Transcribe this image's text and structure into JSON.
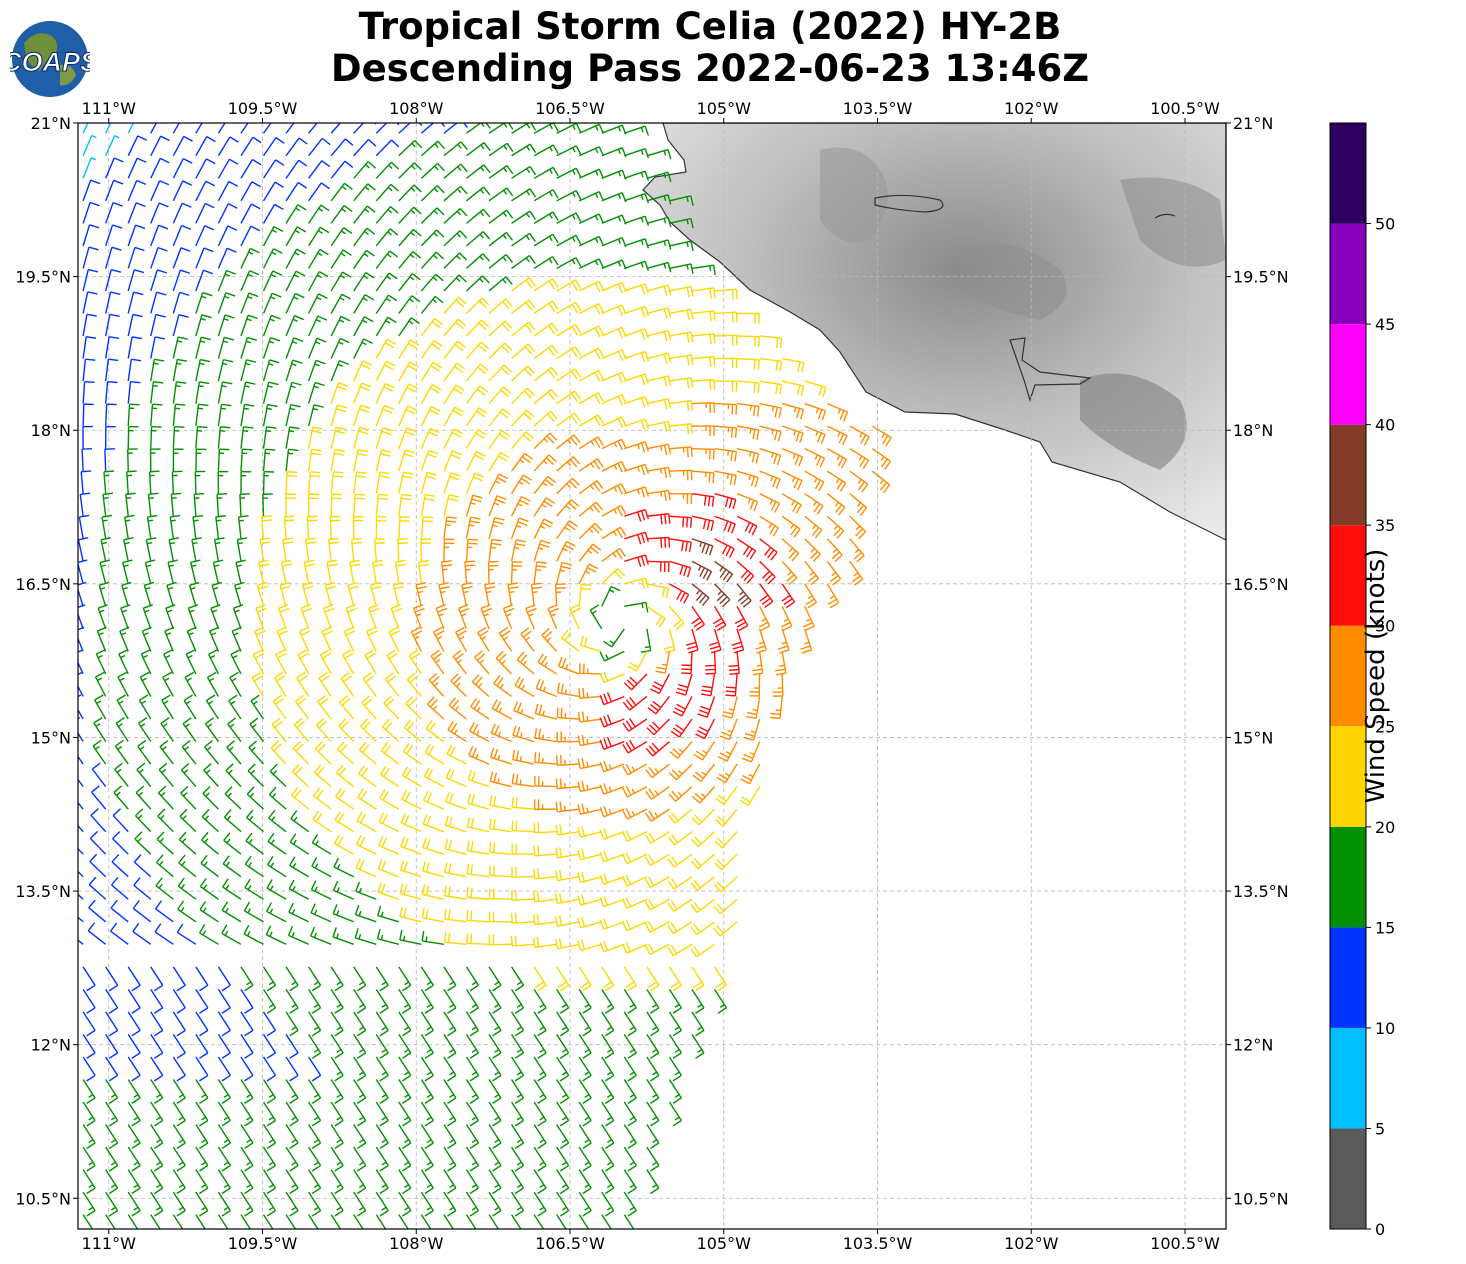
{
  "title": {
    "line1": "Tropical Storm Celia (2022) HY-2B",
    "line2": "Descending Pass 2022-06-23 13:46Z"
  },
  "logo": {
    "text": "COAPS",
    "icon": "globe-logo-icon"
  },
  "map": {
    "lon_range": [
      -111.3,
      -100.1
    ],
    "lat_range": [
      10.2,
      21.0
    ],
    "lon_ticks": [
      {
        "value": -111.0,
        "label": "111°W"
      },
      {
        "value": -109.5,
        "label": "109.5°W"
      },
      {
        "value": -108.0,
        "label": "108°W"
      },
      {
        "value": -106.5,
        "label": "106.5°W"
      },
      {
        "value": -105.0,
        "label": "105°W"
      },
      {
        "value": -103.5,
        "label": "103.5°W"
      },
      {
        "value": -102.0,
        "label": "102°W"
      },
      {
        "value": -100.5,
        "label": "100.5°W"
      }
    ],
    "lat_ticks": [
      {
        "value": 21.0,
        "label": "21°N"
      },
      {
        "value": 19.5,
        "label": "19.5°N"
      },
      {
        "value": 18.0,
        "label": "18°N"
      },
      {
        "value": 16.5,
        "label": "16.5°N"
      },
      {
        "value": 15.0,
        "label": "15°N"
      },
      {
        "value": 13.5,
        "label": "13.5°N"
      },
      {
        "value": 12.0,
        "label": "12°N"
      },
      {
        "value": 10.5,
        "label": "10.5°N"
      }
    ],
    "grid": true,
    "grid_style": "dashed",
    "land": "grayscale topography (Mexico coast, top-right)",
    "storm_center": {
      "lon": -106.0,
      "lat": 16.1
    },
    "swath": {
      "west_lon": -111.3,
      "east_edge": [
        {
          "lat": 21.0,
          "lon": -105.8
        },
        {
          "lat": 19.6,
          "lon": -105.3
        },
        {
          "lat": 18.0,
          "lon": -103.5
        },
        {
          "lat": 17.0,
          "lon": -103.6
        },
        {
          "lat": 16.0,
          "lon": -104.2
        },
        {
          "lat": 14.8,
          "lon": -104.6
        },
        {
          "lat": 13.0,
          "lon": -104.9
        },
        {
          "lat": 12.0,
          "lon": -105.3
        },
        {
          "lat": 10.2,
          "lon": -105.9
        }
      ]
    }
  },
  "colorbar": {
    "label": "Wind Speed (knots)",
    "ticks": [
      "0",
      "5",
      "10",
      "15",
      "20",
      "25",
      "30",
      "35",
      "40",
      "45",
      "50"
    ],
    "bins": [
      {
        "min": 0,
        "max": 5,
        "color": "#5a5a5a"
      },
      {
        "min": 5,
        "max": 10,
        "color": "#00bfff"
      },
      {
        "min": 10,
        "max": 15,
        "color": "#0033ff"
      },
      {
        "min": 15,
        "max": 20,
        "color": "#009000"
      },
      {
        "min": 20,
        "max": 25,
        "color": "#ffd700"
      },
      {
        "min": 25,
        "max": 30,
        "color": "#ff8c00"
      },
      {
        "min": 30,
        "max": 35,
        "color": "#ff0d0d"
      },
      {
        "min": 35,
        "max": 40,
        "color": "#833c28"
      },
      {
        "min": 40,
        "max": 45,
        "color": "#ff00ff"
      },
      {
        "min": 45,
        "max": 50,
        "color": "#8800bb"
      },
      {
        "min": 50,
        "max": 55,
        "color": "#2d0060"
      }
    ]
  }
}
